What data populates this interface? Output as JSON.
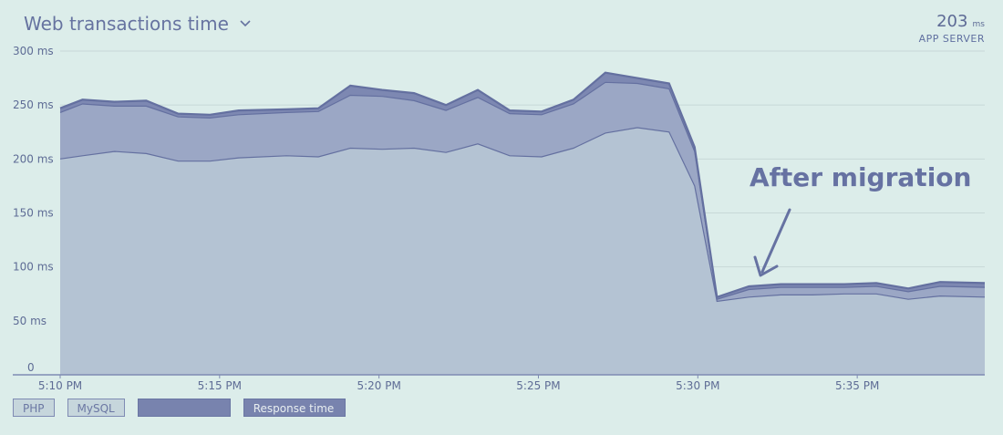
{
  "header": {
    "title": "Web transactions time",
    "chevron_icon": "chevron-down-icon"
  },
  "summary": {
    "value": "203",
    "unit": "ms",
    "label": "APP SERVER"
  },
  "legend": [
    {
      "label": "PHP",
      "style": "light"
    },
    {
      "label": "MySQL",
      "style": "light"
    },
    {
      "label": "",
      "style": "dark"
    },
    {
      "label": "Response time",
      "style": "dark"
    }
  ],
  "colors": {
    "background": "#dcedea",
    "php_fill": "#b4c3d3",
    "mysql_fill": "#9ba7c5",
    "top_fill": "#7d88b2",
    "line": "#6470a0",
    "text": "#5e6c95"
  },
  "chart_data": {
    "type": "area",
    "title": "Web transactions time",
    "xlabel": "",
    "ylabel": "",
    "ylim": [
      0,
      300
    ],
    "xlim": [
      "5:10 PM",
      "5:39 PM"
    ],
    "y_ticks": [
      "300 ms",
      "250 ms",
      "200 ms",
      "150 ms",
      "100 ms",
      "50 ms",
      "0"
    ],
    "x_ticks": [
      "5:10 PM",
      "5:15 PM",
      "5:20 PM",
      "5:25 PM",
      "5:30 PM",
      "5:35 PM"
    ],
    "x_minutes": [
      0,
      0.7,
      1.7,
      2.7,
      3.7,
      4.7,
      5.6,
      7.1,
      8.1,
      9.1,
      10.1,
      11.1,
      12.1,
      13.1,
      14.1,
      15.1,
      16.1,
      17.1,
      18.1,
      19.1,
      19.9,
      20.6,
      21.6,
      22.6,
      23.6,
      24.6,
      25.6,
      26.6,
      27.6,
      29.0
    ],
    "series": [
      {
        "name": "PHP",
        "values": [
          200,
          203,
          207,
          205,
          198,
          198,
          201,
          203,
          202,
          210,
          209,
          210,
          206,
          214,
          203,
          202,
          210,
          224,
          229,
          225,
          175,
          68,
          72,
          74,
          74,
          75,
          75,
          70,
          73,
          72
        ]
      },
      {
        "name": "MySQL",
        "values": [
          43,
          48,
          42,
          44,
          41,
          40,
          40,
          40,
          42,
          49,
          49,
          44,
          39,
          43,
          39,
          39,
          41,
          47,
          41,
          40,
          32,
          2,
          7,
          7,
          7,
          6,
          7,
          7,
          9,
          9
        ]
      },
      {
        "name": "",
        "values": [
          4,
          4,
          4,
          5,
          3,
          3,
          4,
          3,
          3,
          9,
          6,
          7,
          5,
          7,
          3,
          3,
          4,
          9,
          5,
          5,
          4,
          2,
          3,
          3,
          3,
          3,
          3,
          3,
          4,
          4
        ]
      }
    ],
    "annotation": {
      "text": "After migration",
      "x": "5:31 PM",
      "y": 75
    }
  }
}
